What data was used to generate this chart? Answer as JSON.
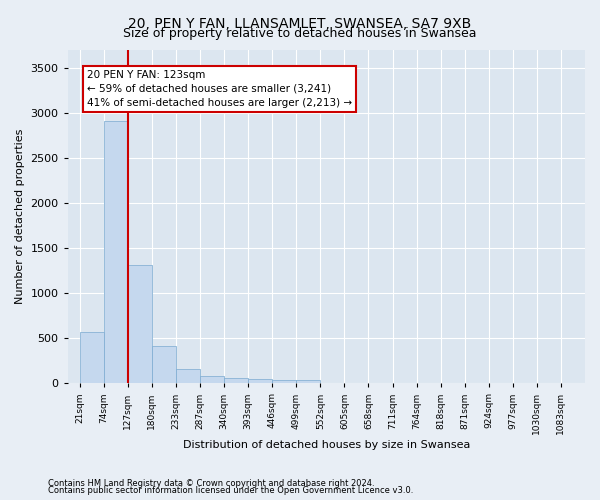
{
  "title1": "20, PEN Y FAN, LLANSAMLET, SWANSEA, SA7 9XB",
  "title2": "Size of property relative to detached houses in Swansea",
  "xlabel": "Distribution of detached houses by size in Swansea",
  "ylabel": "Number of detached properties",
  "categories": [
    "21sqm",
    "74sqm",
    "127sqm",
    "180sqm",
    "233sqm",
    "287sqm",
    "340sqm",
    "393sqm",
    "446sqm",
    "499sqm",
    "552sqm",
    "605sqm",
    "658sqm",
    "711sqm",
    "764sqm",
    "818sqm",
    "871sqm",
    "924sqm",
    "977sqm",
    "1030sqm",
    "1083sqm"
  ],
  "values": [
    570,
    2910,
    1310,
    410,
    155,
    85,
    60,
    50,
    40,
    35,
    0,
    0,
    0,
    0,
    0,
    0,
    0,
    0,
    0,
    0,
    0
  ],
  "bar_color": "#c5d8ee",
  "bar_edge_color": "#7aaad0",
  "vline_color": "#cc0000",
  "annotation_line1": "20 PEN Y FAN: 123sqm",
  "annotation_line2": "← 59% of detached houses are smaller (3,241)",
  "annotation_line3": "41% of semi-detached houses are larger (2,213) →",
  "box_color": "#cc0000",
  "ylim": [
    0,
    3700
  ],
  "yticks": [
    0,
    500,
    1000,
    1500,
    2000,
    2500,
    3000,
    3500
  ],
  "footer1": "Contains HM Land Registry data © Crown copyright and database right 2024.",
  "footer2": "Contains public sector information licensed under the Open Government Licence v3.0.",
  "background_color": "#e8eef5",
  "plot_background": "#dce6f0",
  "title1_fontsize": 10,
  "title2_fontsize": 9
}
